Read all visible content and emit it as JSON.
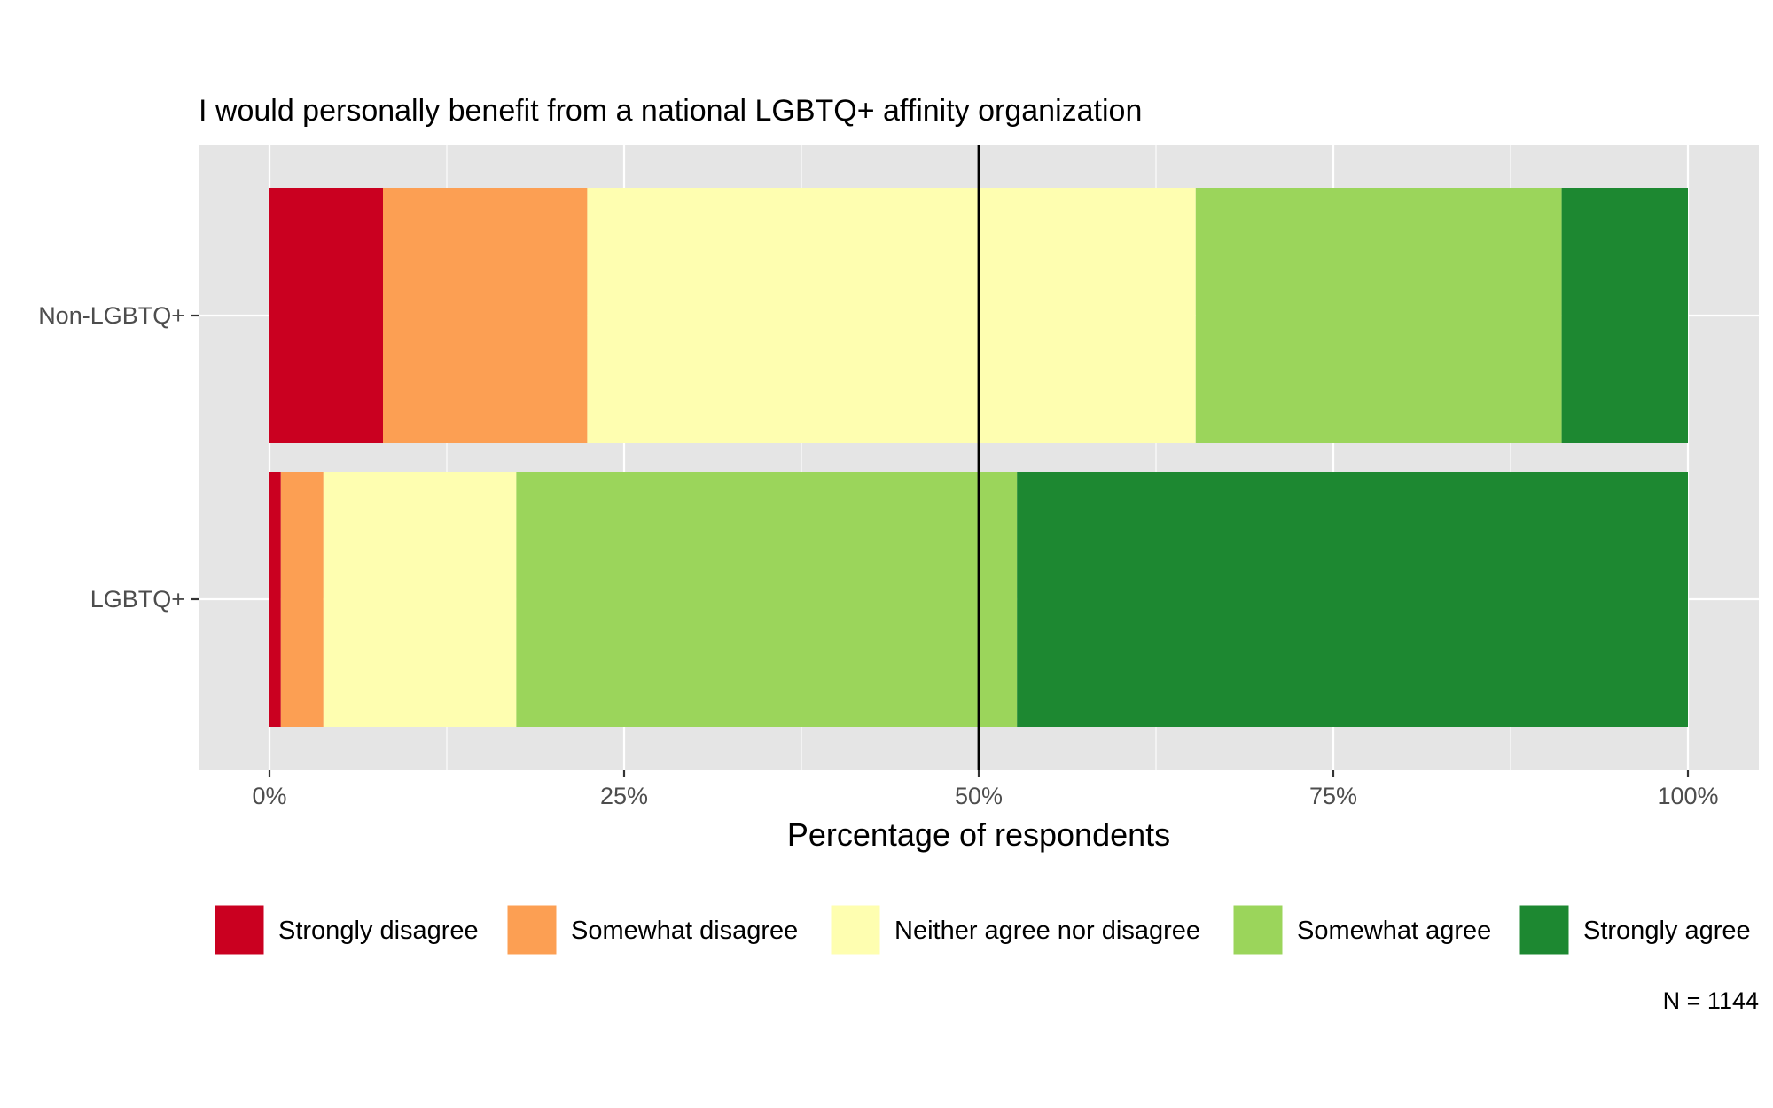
{
  "chart_data": {
    "type": "bar",
    "orientation": "horizontal",
    "stacked": true,
    "title": "I would personally benefit from a national LGBTQ+ affinity organization",
    "xlabel": "Percentage of respondents",
    "ylabel": "",
    "xlim": [
      -5,
      105
    ],
    "x_ticks": [
      {
        "value": 0,
        "label": "0%"
      },
      {
        "value": 25,
        "label": "25%"
      },
      {
        "value": 50,
        "label": "50%"
      },
      {
        "value": 75,
        "label": "75%"
      },
      {
        "value": 100,
        "label": "100%"
      }
    ],
    "reference_line": 50,
    "grid": true,
    "legend_position": "bottom",
    "categories": [
      "Non-LGBTQ+",
      "LGBTQ+"
    ],
    "series": [
      {
        "name": "Strongly disagree",
        "color": "#ca0020",
        "values": [
          8.0,
          0.8
        ]
      },
      {
        "name": "Somewhat disagree",
        "color": "#fc9f53",
        "values": [
          14.4,
          3.0
        ]
      },
      {
        "name": "Neither agree nor disagree",
        "color": "#fefeb0",
        "values": [
          42.9,
          13.6
        ]
      },
      {
        "name": "Somewhat agree",
        "color": "#9bd55b",
        "values": [
          25.8,
          35.3
        ]
      },
      {
        "name": "Strongly agree",
        "color": "#1d8831",
        "values": [
          8.9,
          47.3
        ]
      }
    ],
    "caption": "N = 1144"
  }
}
